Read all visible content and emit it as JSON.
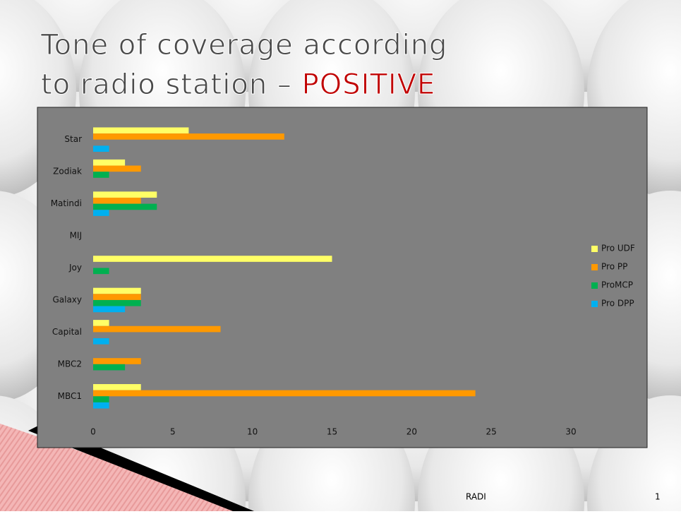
{
  "title": "Tone of coverage according to radio station –",
  "title_accent": "POSITIVE",
  "footer": {
    "text": "RADI",
    "page": "1"
  },
  "chart_data": {
    "type": "hbar",
    "categories": [
      "Star",
      "Zodiak",
      "Matindi",
      "MIJ",
      "Joy",
      "Galaxy",
      "Capital",
      "MBC2",
      "MBC1"
    ],
    "series": [
      {
        "name": "Pro UDF",
        "color": "#ffff66",
        "values": [
          6,
          2,
          4,
          0,
          15,
          3,
          1,
          0,
          3
        ]
      },
      {
        "name": "Pro PP",
        "color": "#ff9900",
        "values": [
          12,
          3,
          3,
          0,
          0,
          3,
          8,
          3,
          24
        ]
      },
      {
        "name": "ProMCP",
        "color": "#00b050",
        "values": [
          0,
          1,
          4,
          0,
          1,
          3,
          0,
          2,
          1
        ]
      },
      {
        "name": "Pro DPP",
        "color": "#00b0f0",
        "values": [
          1,
          0,
          1,
          0,
          0,
          2,
          1,
          0,
          1
        ]
      }
    ],
    "xlim": [
      0,
      30
    ],
    "xticks": [
      0,
      5,
      10,
      15,
      20,
      25,
      30
    ],
    "legend": "right",
    "background": "#808080"
  }
}
